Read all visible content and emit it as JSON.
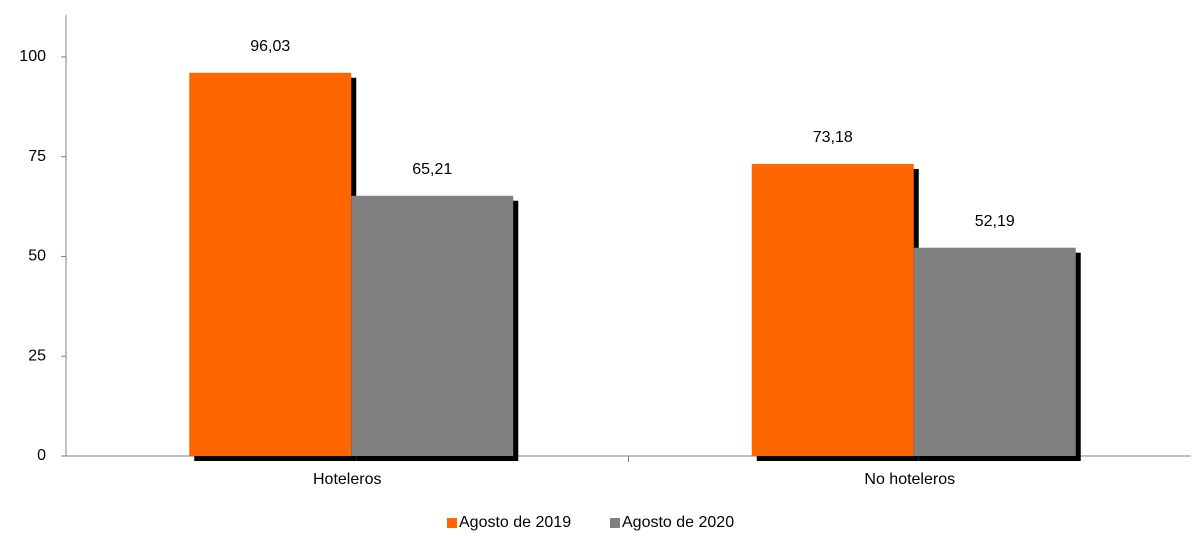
{
  "chart_data": {
    "type": "bar",
    "categories": [
      "Hoteleros",
      "No hoteleros"
    ],
    "series": [
      {
        "name": "Agosto de 2019",
        "color": "#ff6600",
        "values": [
          96.03,
          73.18
        ],
        "value_labels": [
          "96,03",
          "73,18"
        ]
      },
      {
        "name": "Agosto de 2020",
        "color": "#808080",
        "values": [
          65.21,
          52.19
        ],
        "value_labels": [
          "65,21",
          "52,19"
        ]
      }
    ],
    "ylim": [
      0,
      110
    ],
    "yticks": [
      0,
      25,
      50,
      75,
      100
    ],
    "grid": false,
    "legend": "bottom"
  }
}
